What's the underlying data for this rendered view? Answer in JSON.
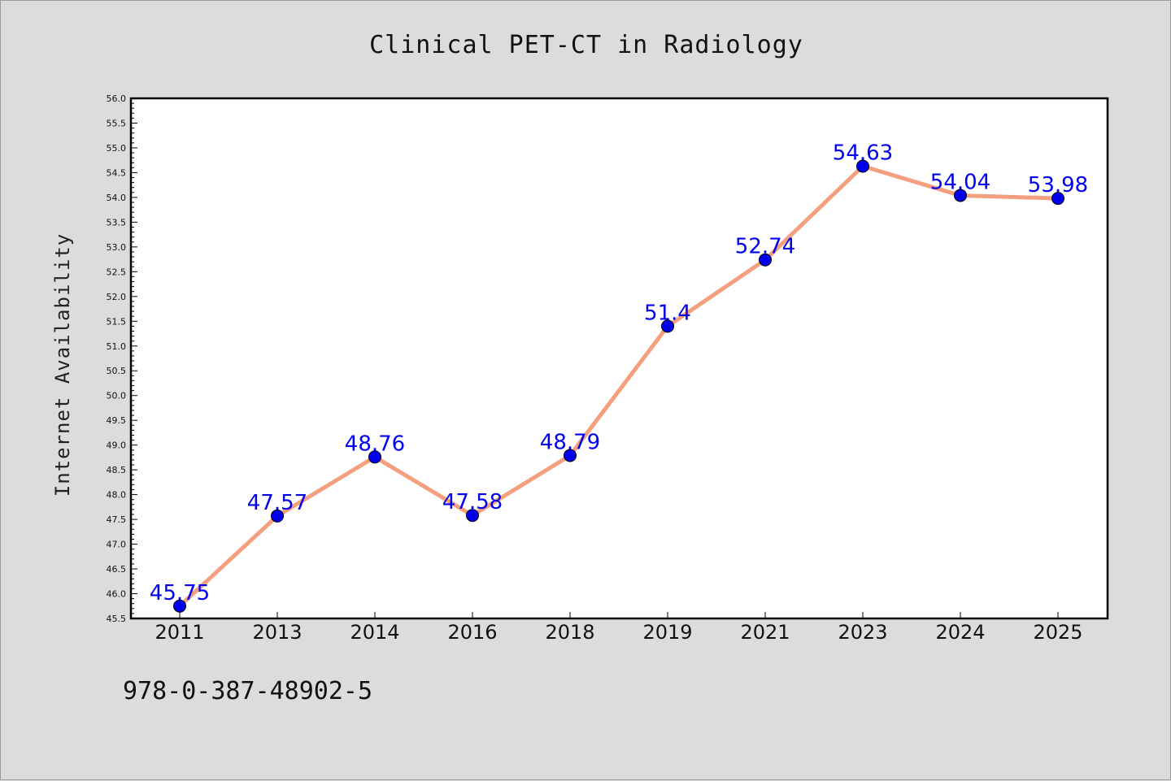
{
  "chart_data": {
    "type": "line",
    "title": "Clinical PET-CT in Radiology",
    "xlabel": "",
    "ylabel": "Internet Availability",
    "categories": [
      "2011",
      "2013",
      "2014",
      "2016",
      "2018",
      "2019",
      "2021",
      "2023",
      "2024",
      "2025"
    ],
    "series": [
      {
        "values": [
          45.75,
          47.57,
          48.76,
          47.58,
          48.79,
          51.4,
          52.74,
          54.63,
          54.04,
          53.98
        ]
      }
    ],
    "data_labels": [
      "45.75",
      "47.57",
      "48.76",
      "47.58",
      "48.79",
      "51.4",
      "52.74",
      "54.63",
      "54.04",
      "53.98"
    ],
    "ylim": [
      45.5,
      56.0
    ],
    "ytick_step": 0.5,
    "grid": false,
    "legend": "none",
    "colors": {
      "line": "#f4a07f",
      "marker": "#0000ee",
      "label": "#0000ee",
      "background": "#dcdcdc",
      "plot_area": "#ffffff"
    }
  },
  "footnote": "978-0-387-48902-5"
}
